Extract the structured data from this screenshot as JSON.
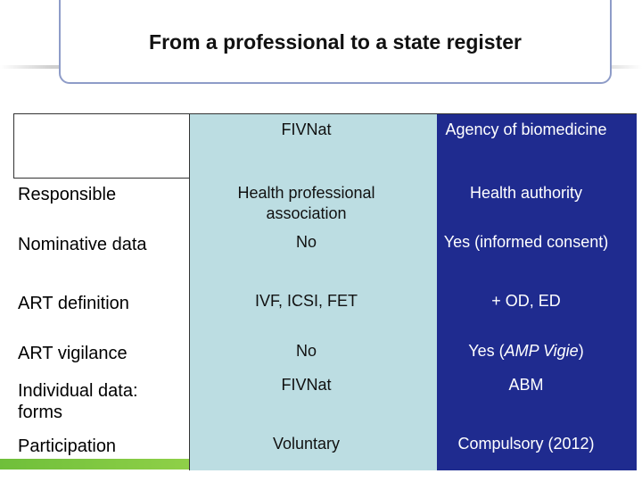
{
  "title": "From a professional to a state register",
  "columns": {
    "fivnat": "FIVNat",
    "abm": "Agency of biomedicine"
  },
  "rows": [
    {
      "label": "Responsible",
      "fivnat": "Health professional association",
      "abm": "Health authority"
    },
    {
      "label": "Nominative data",
      "fivnat": "No",
      "abm": "Yes (informed consent)"
    },
    {
      "label": "ART definition",
      "fivnat": "IVF, ICSI, FET",
      "abm": "+ OD, ED"
    },
    {
      "label": "ART vigilance",
      "fivnat": "No",
      "abm_prefix": "Yes (",
      "abm_em": "AMP Vigie",
      "abm_suffix": ")"
    },
    {
      "label": "Individual data: forms",
      "fivnat": "FIVNat",
      "abm": "ABM"
    },
    {
      "label": "Participation",
      "fivnat": "Voluntary",
      "abm": "Compulsory (2012)"
    }
  ],
  "colors": {
    "fivnat_column": "#bcdde2",
    "abm_column": "#1f2b8f",
    "title_border": "#8e9cc8",
    "accent_bar": "#7cc544"
  }
}
